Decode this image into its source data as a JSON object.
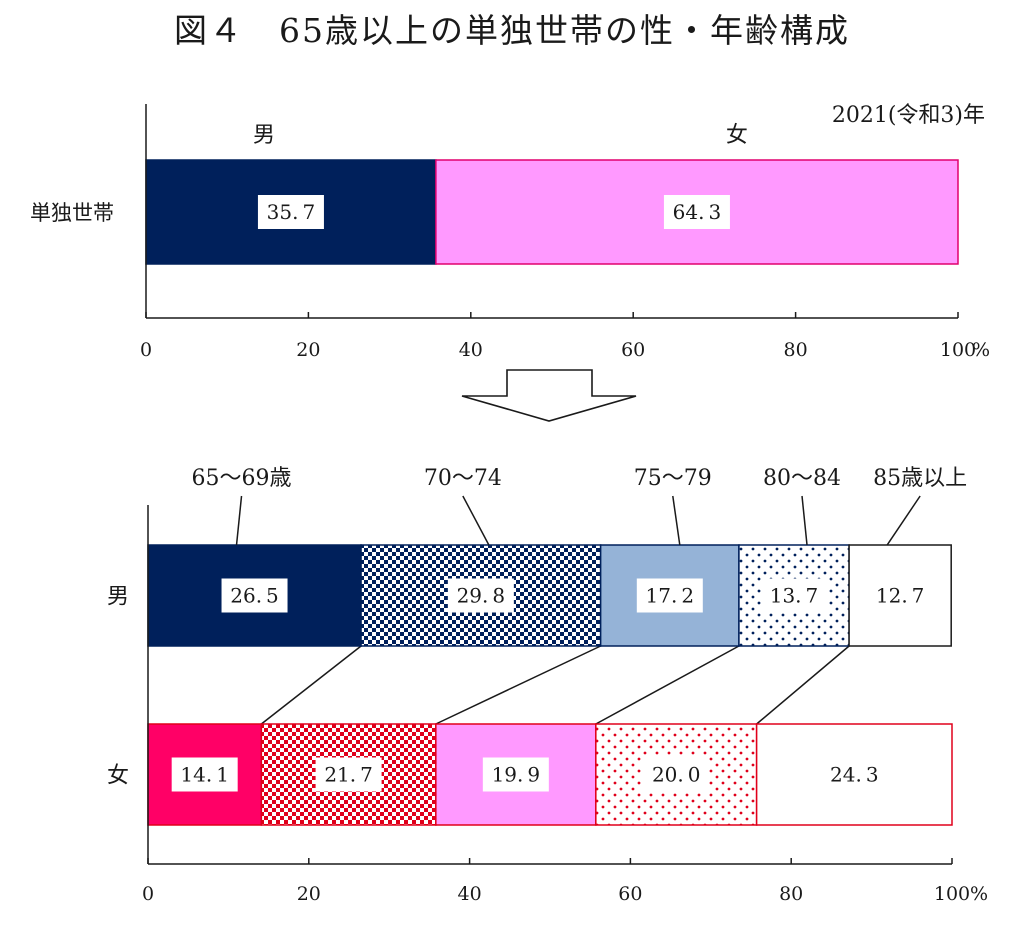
{
  "chart_data": [
    {
      "type": "bar",
      "orientation": "horizontal",
      "stacked": true,
      "title": "図４　65歳以上の単独世帯の性・年齢構成",
      "note": "2021(令和3)年",
      "categories": [
        "単独世帯"
      ],
      "series": [
        {
          "name": "男",
          "values": [
            35.7
          ],
          "color": "#00205b",
          "pattern": "solid"
        },
        {
          "name": "女",
          "values": [
            64.3
          ],
          "color": "#ff99ff",
          "pattern": "solid"
        }
      ],
      "xlim": [
        0,
        100
      ],
      "xticks": [
        "0",
        "20",
        "40",
        "60",
        "80",
        "100"
      ],
      "x_unit": "%",
      "grid": false,
      "legend": "labels above bar segments"
    },
    {
      "type": "bar",
      "orientation": "horizontal",
      "stacked": true,
      "categories": [
        "男",
        "女"
      ],
      "series": [
        {
          "name": "65～69歳",
          "values": [
            26.5,
            14.1
          ],
          "pattern": "solid"
        },
        {
          "name": "70～74",
          "values": [
            29.8,
            21.7
          ],
          "pattern": "checker"
        },
        {
          "name": "75～79",
          "values": [
            17.2,
            19.9
          ],
          "pattern": "solid-light"
        },
        {
          "name": "80～84",
          "values": [
            13.7,
            20.0
          ],
          "pattern": "dots"
        },
        {
          "name": "85歳以上",
          "values": [
            12.7,
            24.3
          ],
          "pattern": "blank"
        }
      ],
      "colors": {
        "男": {
          "dark": "#00205b",
          "light": "#95b3d7"
        },
        "女": {
          "dark": "#ff0066",
          "light": "#ff99ff",
          "edge": "#e0001b"
        }
      },
      "xlim": [
        0,
        100
      ],
      "xticks": [
        "0",
        "20",
        "40",
        "60",
        "80",
        "100"
      ],
      "x_unit": "%",
      "grid": false,
      "legend": "labels above top bar with leader lines"
    }
  ]
}
